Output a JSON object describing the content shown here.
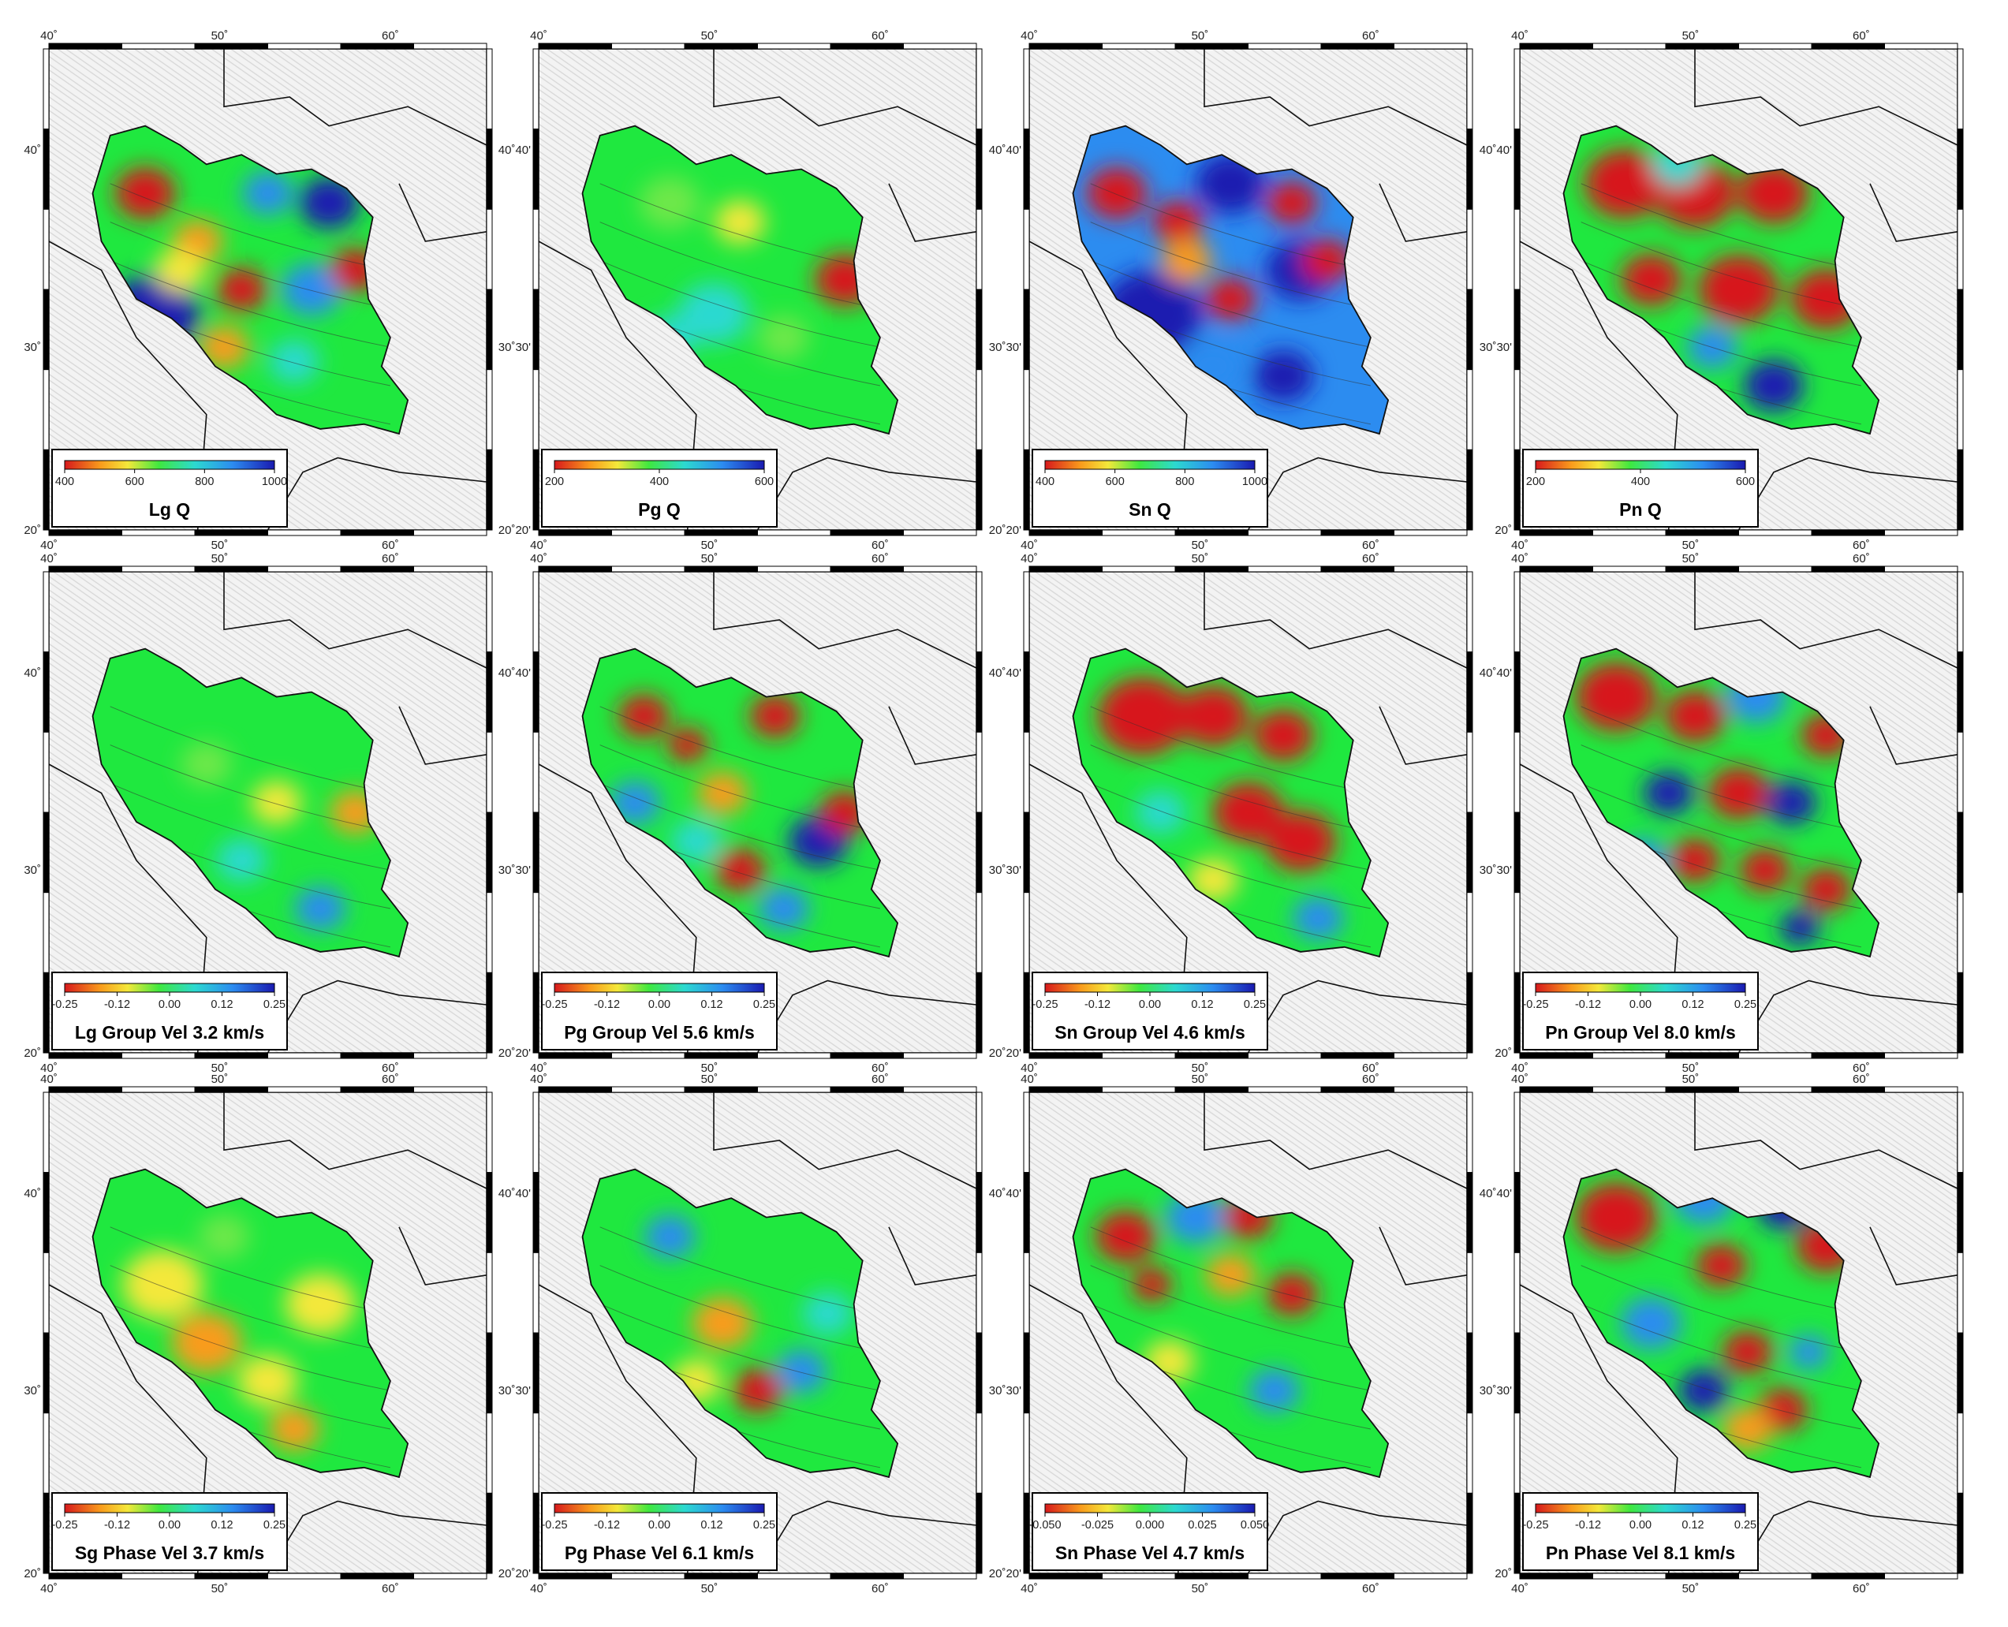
{
  "figure": {
    "columns": 4,
    "rows": 3,
    "panels": [
      {
        "title": "Lg Q",
        "colorbar": [
          "400",
          "600",
          "800",
          "1000"
        ],
        "lat_labels": [
          "40˚",
          "30˚",
          "20˚"
        ],
        "pattern": "q_mixed"
      },
      {
        "title": "Pg Q",
        "colorbar": [
          "200",
          "400",
          "600"
        ],
        "lat_labels": [
          "40˚40'",
          "30˚30'",
          "20˚20'"
        ],
        "pattern": "q_green"
      },
      {
        "title": "Sn Q",
        "colorbar": [
          "400",
          "600",
          "800",
          "1000"
        ],
        "lat_labels": [
          "40˚40'",
          "30˚30'",
          "20˚20'"
        ],
        "pattern": "q_blue_red"
      },
      {
        "title": "Pn Q",
        "colorbar": [
          "200",
          "400",
          "600"
        ],
        "lat_labels": [
          "40˚40'",
          "30˚30'",
          "20˚"
        ],
        "pattern": "q_red"
      },
      {
        "title": "Lg Group Vel 3.2 km/s",
        "colorbar": [
          "-0.25",
          "-0.12",
          "0.00",
          "0.12",
          "0.25"
        ],
        "lat_labels": [
          "40˚",
          "30˚",
          "20˚"
        ],
        "pattern": "vel_green"
      },
      {
        "title": "Pg Group Vel 5.6 km/s",
        "colorbar": [
          "-0.25",
          "-0.12",
          "0.00",
          "0.12",
          "0.25"
        ],
        "lat_labels": [
          "40˚40'",
          "30˚30'",
          "20˚20'"
        ],
        "pattern": "vel_mixed"
      },
      {
        "title": "Sn Group Vel 4.6 km/s",
        "colorbar": [
          "-0.25",
          "-0.12",
          "0.00",
          "0.12",
          "0.25"
        ],
        "lat_labels": [
          "40˚40'",
          "30˚30'",
          "20˚20'"
        ],
        "pattern": "vel_red"
      },
      {
        "title": "Pn Group Vel 8.0 km/s",
        "colorbar": [
          "-0.25",
          "-0.12",
          "0.00",
          "0.12",
          "0.25"
        ],
        "lat_labels": [
          "40˚40'",
          "30˚30'",
          "20˚"
        ],
        "pattern": "vel_redblue"
      },
      {
        "title": "Sg Phase Vel 3.7 km/s",
        "colorbar": [
          "-0.25",
          "-0.12",
          "0.00",
          "0.12",
          "0.25"
        ],
        "lat_labels": [
          "40˚",
          "30˚",
          "20˚"
        ],
        "pattern": "phase_yellow"
      },
      {
        "title": "Pg Phase Vel 6.1 km/s",
        "colorbar": [
          "-0.25",
          "-0.12",
          "0.00",
          "0.12",
          "0.25"
        ],
        "lat_labels": [
          "40˚40'",
          "30˚30'",
          "20˚20'"
        ],
        "pattern": "phase_green"
      },
      {
        "title": "Sn Phase Vel 4.7 km/s",
        "colorbar": [
          "-0.050",
          "-0.025",
          "0.000",
          "0.025",
          "0.050"
        ],
        "lat_labels": [
          "40˚40'",
          "30˚30'",
          "20˚20'"
        ],
        "pattern": "phase_mixed"
      },
      {
        "title": "Pn Phase Vel 8.1 km/s",
        "colorbar": [
          "-0.25",
          "-0.12",
          "0.00",
          "0.12",
          "0.25"
        ],
        "lat_labels": [
          "40˚40'",
          "30˚30'",
          "20˚"
        ],
        "pattern": "phase_red"
      }
    ],
    "lon_labels": [
      "40˚",
      "50˚",
      "60˚"
    ],
    "colorscale": [
      "#d7191c",
      "#f99b1c",
      "#f4e83a",
      "#6ee84a",
      "#1fe83f",
      "#2cd9d0",
      "#2c8cf0",
      "#1a1ab0"
    ],
    "land_color": "#f2f2f2",
    "ocean_color": "#ffffff",
    "border_color": "#111111"
  }
}
